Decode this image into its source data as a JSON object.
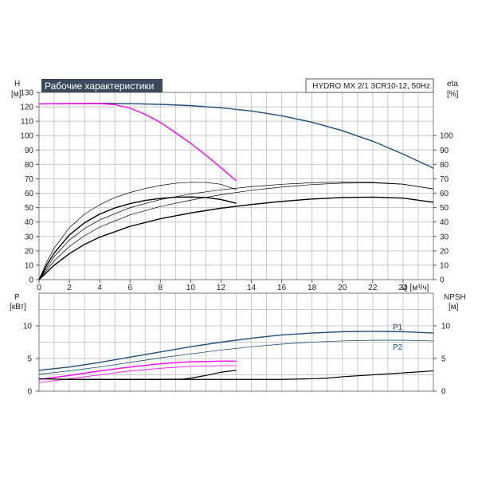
{
  "chart_data": [
    {
      "type": "line",
      "title": "Рабочие характеристики",
      "subtitle": "HYDRO MX 2/1 3CR10-12, 50Hz",
      "xlabel": "Q [м³/ч]",
      "ylabel": "H",
      "ylabel_unit": "[м]",
      "ylabel_right": "eta",
      "ylabel_right_unit": "[%]",
      "xlim": [
        0,
        26
      ],
      "ylim": [
        0,
        130
      ],
      "ylim_right": [
        0,
        130
      ],
      "x_ticks": [
        0,
        2,
        4,
        6,
        8,
        10,
        12,
        14,
        16,
        18,
        20,
        22,
        24
      ],
      "y_ticks": [
        0,
        10,
        20,
        30,
        40,
        50,
        60,
        70,
        80,
        90,
        100,
        110,
        120,
        130
      ],
      "y_ticks_right": [
        0,
        10,
        20,
        30,
        40,
        50,
        60,
        70,
        80,
        90,
        100
      ],
      "grid": true,
      "series": [
        {
          "color": "#1f4e79",
          "width": 1.4,
          "x": [
            0,
            2,
            4,
            6,
            8,
            10,
            12,
            14,
            16,
            18,
            20,
            22,
            24,
            26
          ],
          "values": [
            122,
            122.3,
            122.4,
            122.2,
            121.7,
            120.8,
            119.3,
            117.1,
            113.8,
            109.3,
            103.4,
            96.1,
            87.2,
            77.4
          ]
        },
        {
          "color": "#ff00ff",
          "width": 1.4,
          "x": [
            0,
            2,
            4,
            5,
            6,
            7,
            8,
            9,
            10,
            11,
            12,
            13
          ],
          "values": [
            122,
            122.2,
            122.3,
            121.5,
            119,
            114.8,
            109.1,
            102.0,
            94.6,
            86.4,
            77.7,
            68.6
          ]
        },
        {
          "color": "#000000",
          "width": 0.7,
          "x": [
            0,
            0.5,
            1,
            2,
            3,
            4,
            5,
            6,
            7,
            8,
            9,
            10,
            11,
            12,
            13
          ],
          "values": [
            0,
            12,
            22,
            36,
            45.5,
            52,
            57,
            60.5,
            63.3,
            65.4,
            66.9,
            67.6,
            67.5,
            66.2,
            62.5
          ]
        },
        {
          "color": "#000000",
          "width": 1.4,
          "x": [
            0,
            0.5,
            1,
            2,
            3,
            4,
            5,
            6,
            7,
            8,
            9,
            10,
            11,
            12,
            13
          ],
          "values": [
            0,
            10,
            18.5,
            31,
            39.5,
            45.5,
            49.8,
            52.8,
            55,
            56.4,
            57.2,
            57.4,
            57,
            55.6,
            53
          ]
        },
        {
          "color": "#000000",
          "width": 0.7,
          "x": [
            0,
            1,
            2,
            3,
            4,
            6,
            8,
            10,
            12,
            14,
            16,
            18,
            20,
            22,
            24,
            26
          ],
          "values": [
            0,
            13,
            23,
            30.5,
            36.5,
            45,
            50.8,
            55.2,
            59,
            62,
            64.3,
            66,
            67,
            67.2,
            66.2,
            63
          ]
        },
        {
          "color": "#000000",
          "width": 1.4,
          "x": [
            0,
            1,
            2,
            3,
            4,
            6,
            8,
            10,
            12,
            14,
            16,
            18,
            20,
            22,
            24,
            26
          ],
          "values": [
            0,
            10,
            18,
            24.5,
            29.5,
            37,
            42.3,
            46.3,
            49.6,
            52.2,
            54.3,
            56,
            57,
            57.3,
            56.6,
            53.7
          ]
        },
        {
          "color": "#000000",
          "width": 0.7,
          "x": [
            0,
            1,
            2,
            3,
            4,
            6,
            8,
            10,
            12,
            14,
            16,
            18,
            20,
            22,
            24,
            26
          ],
          "values": [
            0,
            16,
            27.5,
            35.5,
            41.5,
            50,
            55.6,
            59.5,
            62.4,
            64.6,
            66.2,
            67.3,
            67.8,
            67.6,
            66.3,
            63
          ]
        }
      ]
    },
    {
      "type": "line",
      "ylabel": "P",
      "ylabel_unit": "[кВт]",
      "ylabel_right": "NPSH",
      "ylabel_right_unit": "[м]",
      "xlim": [
        0,
        26
      ],
      "ylim": [
        0,
        15
      ],
      "ylim_right": [
        0,
        15
      ],
      "y_ticks": [
        0,
        5,
        10
      ],
      "y_ticks_right": [
        0,
        5,
        10
      ],
      "grid": true,
      "series": [
        {
          "name": "P1",
          "color": "#1f4e79",
          "width": 1.4,
          "x": [
            0,
            2,
            4,
            6,
            8,
            10,
            12,
            14,
            16,
            18,
            20,
            22,
            24,
            26
          ],
          "values": [
            3.2,
            3.7,
            4.4,
            5.2,
            6.0,
            6.8,
            7.5,
            8.1,
            8.6,
            8.9,
            9.1,
            9.15,
            9.1,
            8.9
          ]
        },
        {
          "name": "P2",
          "color": "#1f4e79",
          "width": 0.8,
          "x": [
            0,
            2,
            4,
            6,
            8,
            10,
            12,
            14,
            16,
            18,
            20,
            22,
            24,
            26
          ],
          "values": [
            2.6,
            3.1,
            3.7,
            4.4,
            5.1,
            5.7,
            6.3,
            6.8,
            7.2,
            7.5,
            7.7,
            7.8,
            7.8,
            7.7
          ]
        },
        {
          "color": "#ff00ff",
          "width": 1.4,
          "x": [
            0,
            2,
            4,
            6,
            8,
            10,
            12,
            13
          ],
          "values": [
            1.8,
            2.4,
            3.1,
            3.7,
            4.2,
            4.5,
            4.6,
            4.6
          ]
        },
        {
          "color": "#ff00ff",
          "width": 0.8,
          "x": [
            0,
            2,
            4,
            6,
            8,
            10,
            12,
            13
          ],
          "values": [
            1.3,
            1.9,
            2.5,
            3.1,
            3.5,
            3.8,
            3.9,
            3.9
          ]
        },
        {
          "color": "#000000",
          "width": 1.2,
          "x": [
            0,
            1,
            2,
            4,
            6,
            8,
            9.5,
            10,
            11,
            12,
            13
          ],
          "values": [
            1.9,
            1.85,
            1.8,
            1.8,
            1.8,
            1.8,
            1.85,
            2.0,
            2.4,
            2.9,
            3.2
          ]
        },
        {
          "color": "#000000",
          "width": 1.2,
          "x": [
            0,
            2,
            4,
            6,
            8,
            10,
            12,
            14,
            16,
            18,
            19,
            20,
            22,
            24,
            26
          ],
          "values": [
            1.9,
            1.8,
            1.8,
            1.8,
            1.8,
            1.8,
            1.8,
            1.8,
            1.8,
            1.9,
            2.0,
            2.2,
            2.5,
            2.8,
            3.1
          ]
        }
      ],
      "labels": [
        "P1",
        "P2"
      ]
    }
  ]
}
